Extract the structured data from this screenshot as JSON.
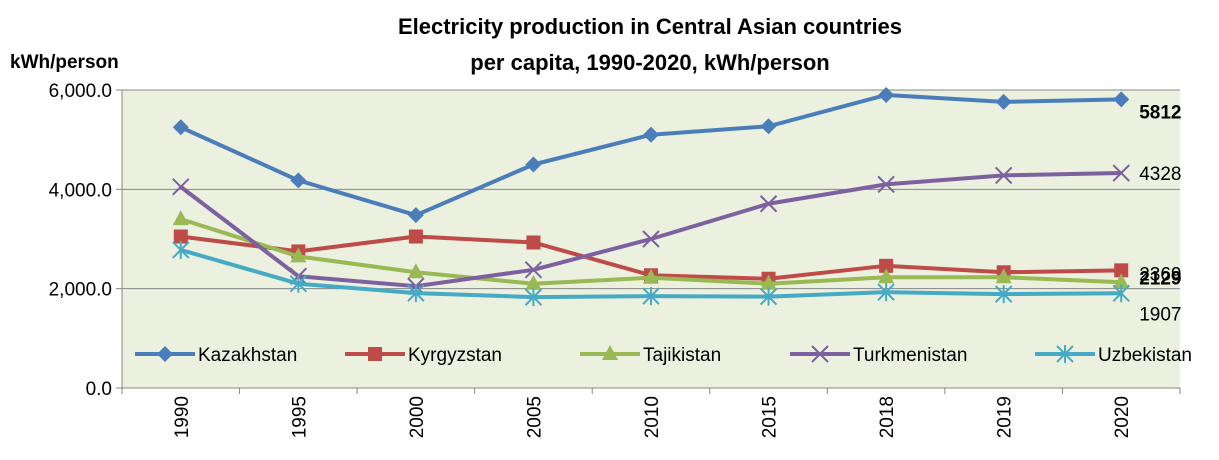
{
  "chart_data": {
    "type": "line",
    "title": [
      "Electricity production in Central Asian countries",
      "per capita, 1990-2020, kWh/person"
    ],
    "y_axis_label": "kWh/person",
    "categories": [
      "1990",
      "1995",
      "2000",
      "2005",
      "2010",
      "2015",
      "2018",
      "2019",
      "2020"
    ],
    "ylim": [
      0,
      6000
    ],
    "yticks": [
      {
        "value": 0,
        "label": "0.0"
      },
      {
        "value": 2000,
        "label": "2,000.0"
      },
      {
        "value": 4000,
        "label": "4,000.0"
      },
      {
        "value": 6000,
        "label": "6,000.0"
      }
    ],
    "grid": true,
    "legend": "bottom",
    "series": [
      {
        "name": "Kazakhstan",
        "color": "#4a7ebb",
        "marker": "diamond",
        "label_bold": true,
        "values": [
          5250,
          4180,
          3480,
          4500,
          5100,
          5270,
          5900,
          5760,
          5812
        ]
      },
      {
        "name": "Kyrgyzstan",
        "color": "#be4b48",
        "marker": "square",
        "label_bold": false,
        "values": [
          3050,
          2750,
          3050,
          2930,
          2270,
          2200,
          2460,
          2330,
          2369
        ]
      },
      {
        "name": "Tajikistan",
        "color": "#98b954",
        "marker": "triangle",
        "label_bold": true,
        "values": [
          3400,
          2650,
          2330,
          2100,
          2220,
          2100,
          2230,
          2230,
          2129
        ]
      },
      {
        "name": "Turkmenistan",
        "color": "#7d60a0",
        "marker": "x",
        "label_bold": false,
        "values": [
          4050,
          2250,
          2050,
          2380,
          3000,
          3710,
          4100,
          4280,
          4328
        ]
      },
      {
        "name": "Uzbekistan",
        "color": "#46aac5",
        "marker": "star",
        "label_bold": false,
        "values": [
          2780,
          2100,
          1910,
          1830,
          1850,
          1840,
          1930,
          1890,
          1907
        ]
      }
    ]
  }
}
